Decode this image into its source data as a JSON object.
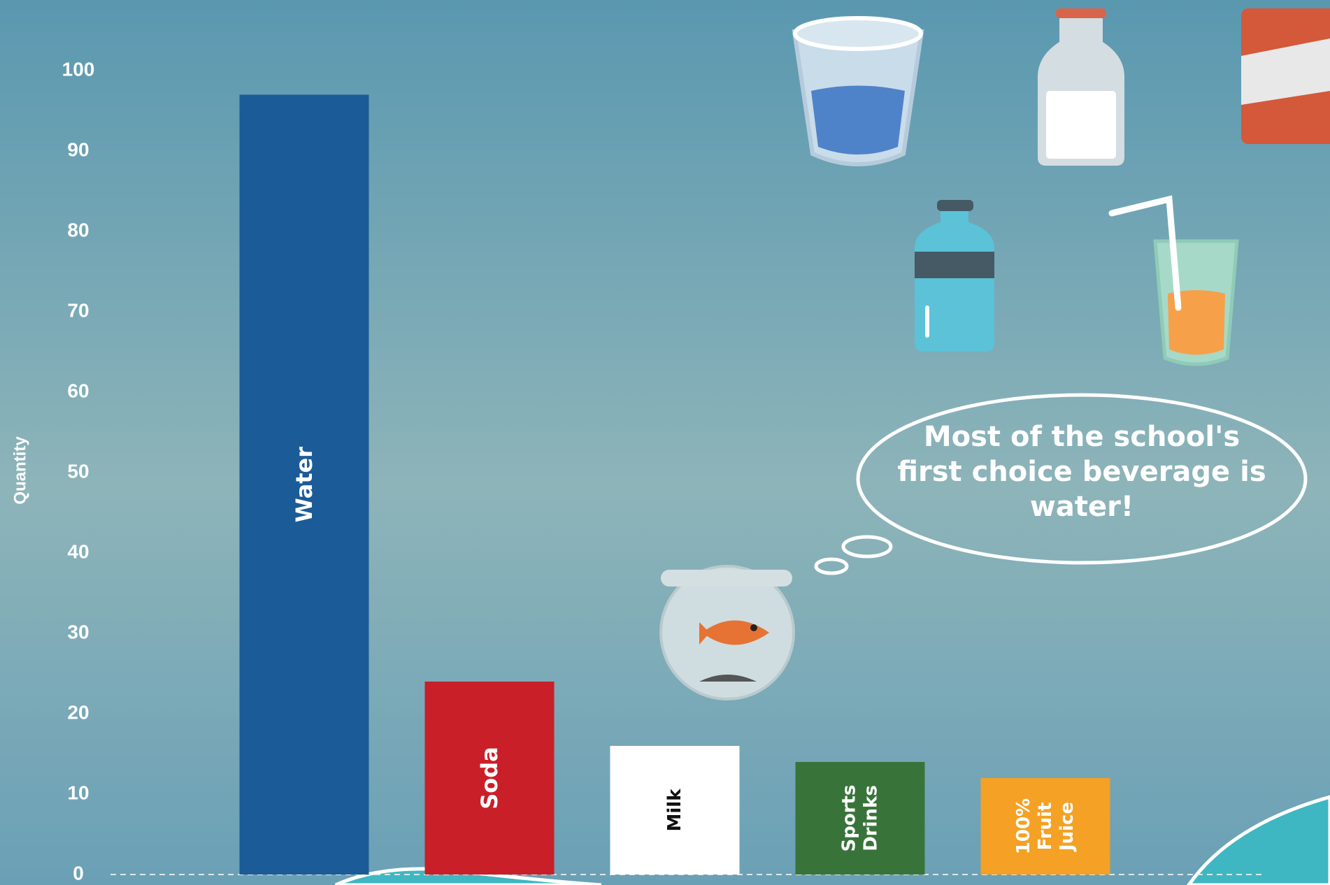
{
  "chart_data": {
    "type": "bar",
    "y_label": "Quantity",
    "annotation": "Most of the school's first choice beverage is water!",
    "categories": [
      "Water",
      "Soda",
      "Milk",
      "Sports Drinks",
      "100% Fruit Juice"
    ],
    "values": [
      97,
      24,
      16,
      14,
      12
    ],
    "colors": [
      "#1b5b98",
      "#c91f28",
      "#ffffff",
      "#38743a",
      "#f4a125"
    ],
    "ylim": [
      0,
      100
    ],
    "yticks": [
      0,
      10,
      20,
      30,
      40,
      50,
      60,
      70,
      80,
      90,
      100
    ]
  }
}
